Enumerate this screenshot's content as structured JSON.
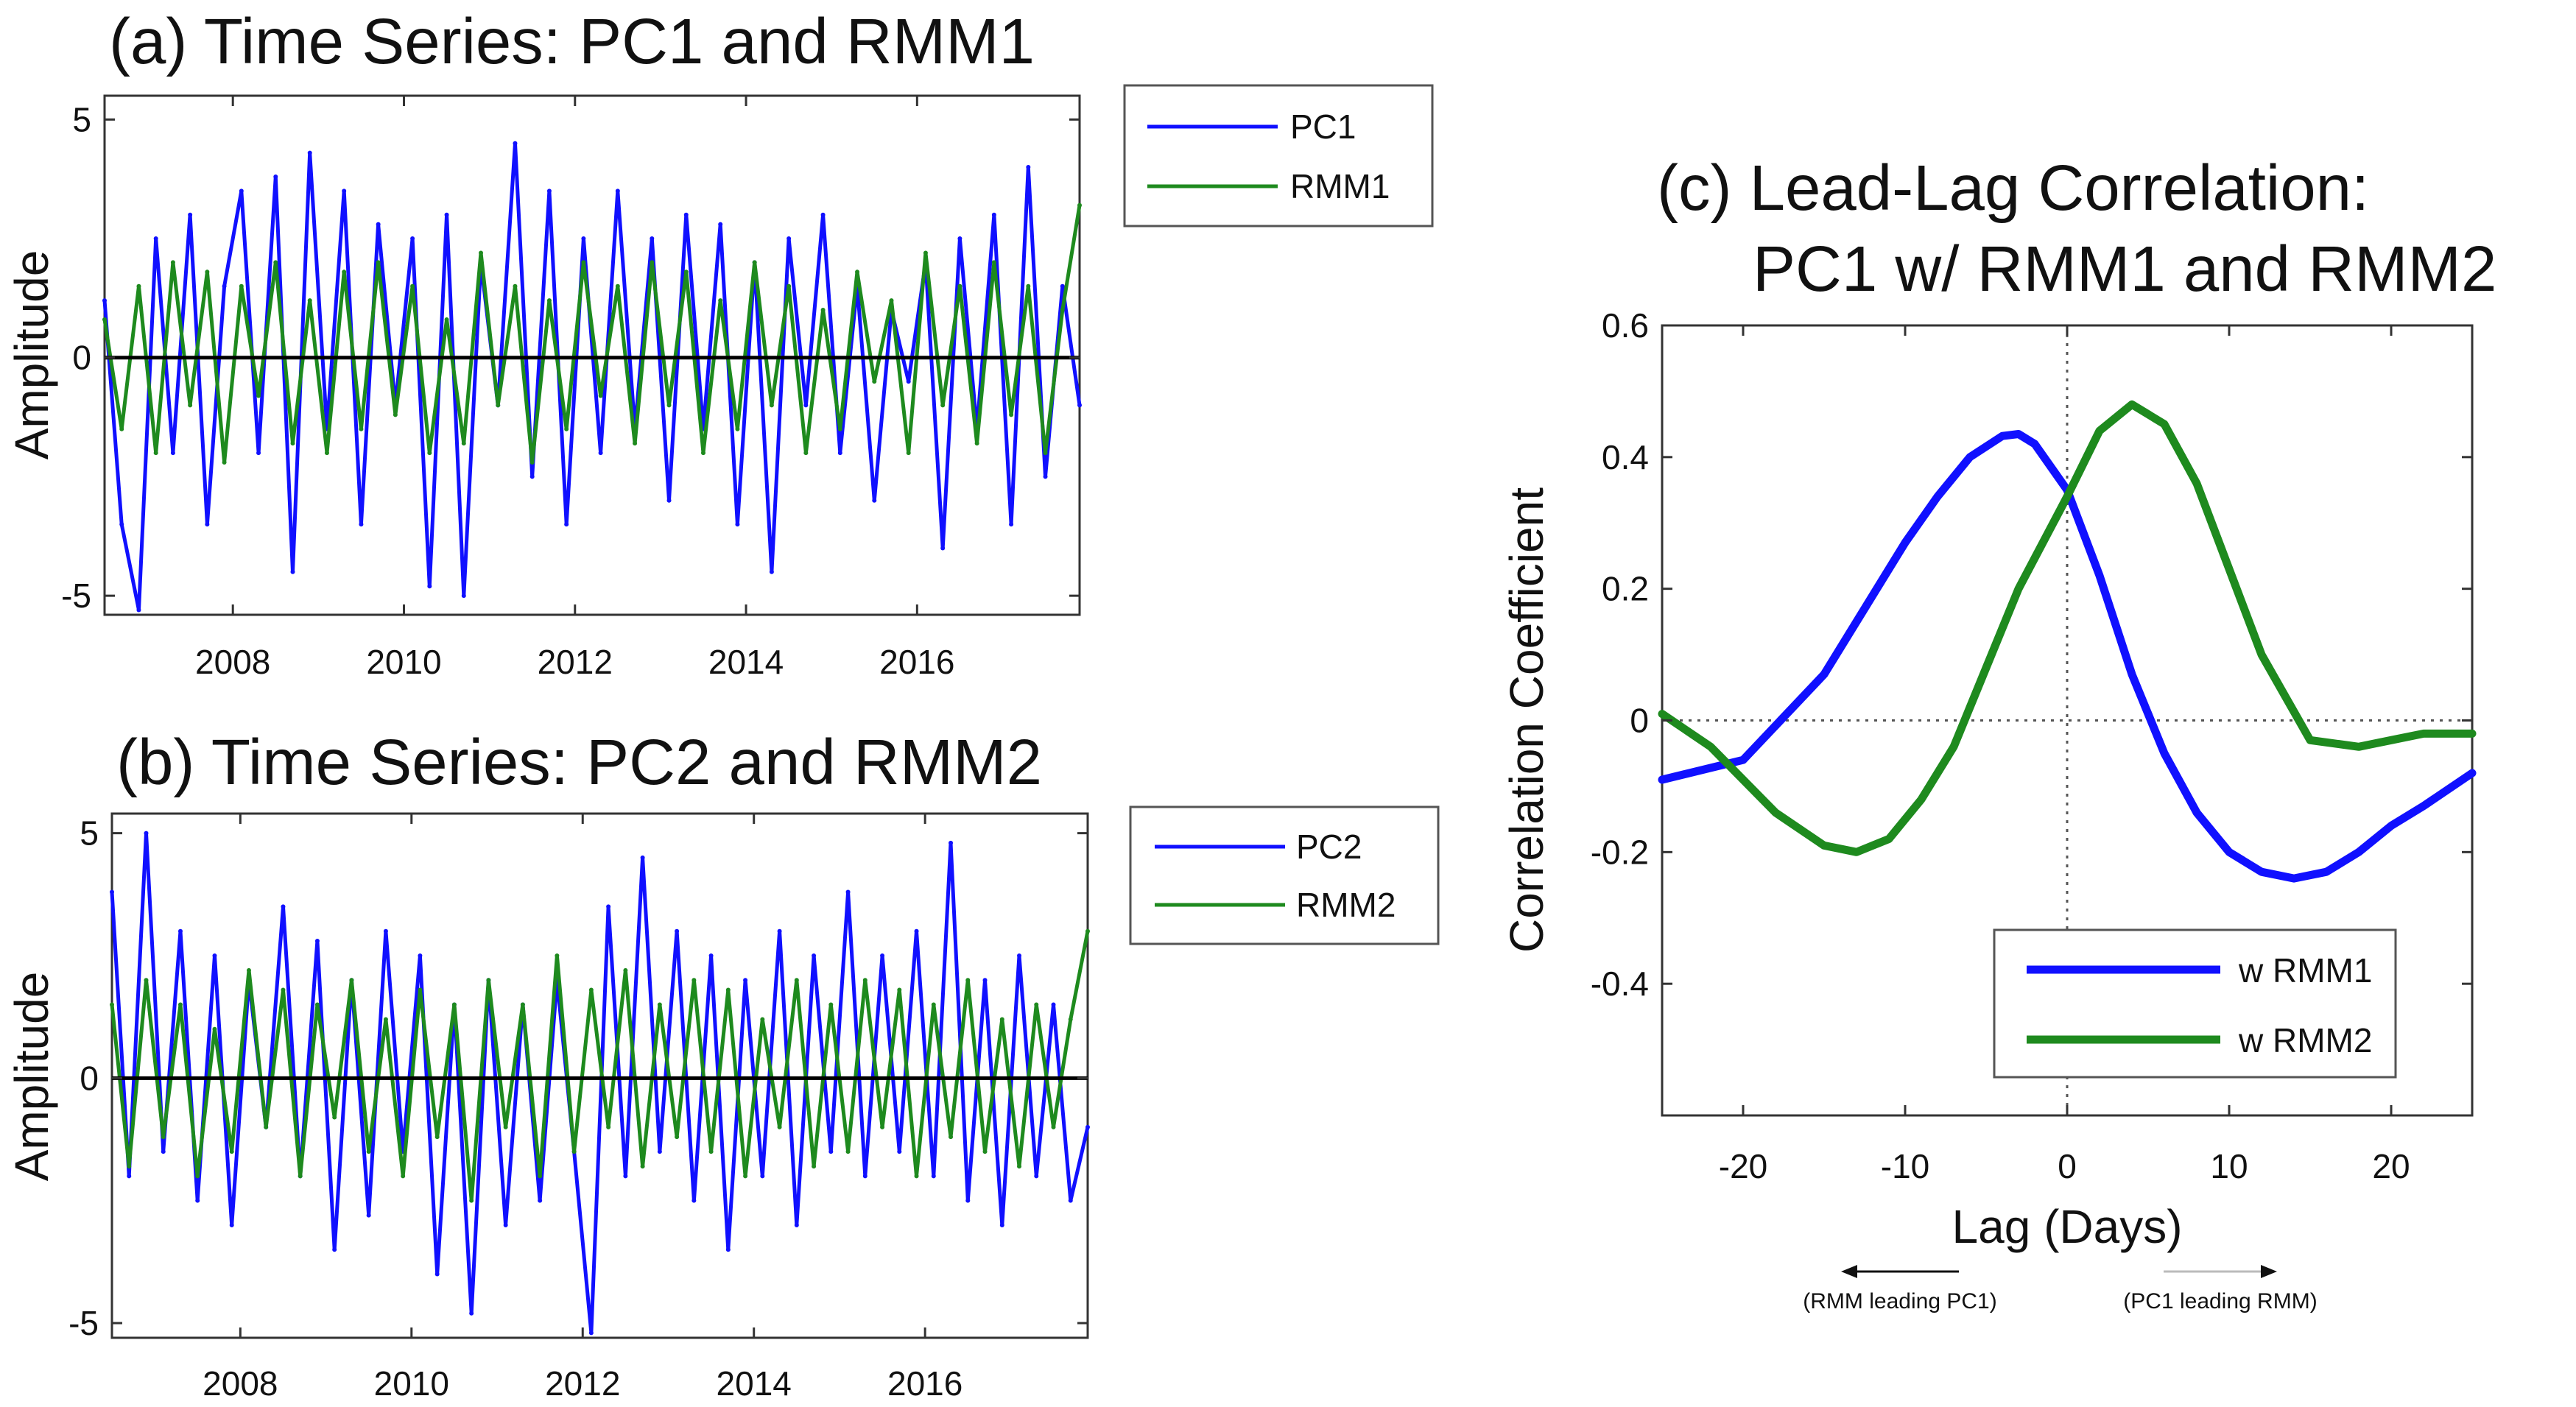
{
  "colors": {
    "pc": "#1010ff",
    "rmm": "#1e8a1e",
    "zero": "#000000"
  },
  "chart_data": [
    {
      "id": "a",
      "type": "line",
      "title": "(a) Time Series: PC1 and RMM1",
      "xlabel": "",
      "ylabel": "Amplitude",
      "xlim": [
        2006.5,
        2017.9
      ],
      "ylim": [
        -5.4,
        5.5
      ],
      "xticks": [
        2008,
        2010,
        2012,
        2014,
        2016
      ],
      "xtick_labels": [
        "2008",
        "2010",
        "2012",
        "2014",
        "2016"
      ],
      "yticks": [
        5,
        0,
        -5
      ],
      "ytick_labels": [
        "5",
        "0",
        "-5"
      ],
      "zero_line": true,
      "legend": {
        "position": "top-right"
      },
      "series": [
        {
          "name": "PC1",
          "color": "#1010ff",
          "x": [
            2006.5,
            2006.7,
            2006.9,
            2007.1,
            2007.3,
            2007.5,
            2007.7,
            2007.9,
            2008.1,
            2008.3,
            2008.5,
            2008.7,
            2008.9,
            2009.1,
            2009.3,
            2009.5,
            2009.7,
            2009.9,
            2010.1,
            2010.3,
            2010.5,
            2010.7,
            2010.9,
            2011.1,
            2011.3,
            2011.5,
            2011.7,
            2011.9,
            2012.1,
            2012.3,
            2012.5,
            2012.7,
            2012.9,
            2013.1,
            2013.3,
            2013.5,
            2013.7,
            2013.9,
            2014.1,
            2014.3,
            2014.5,
            2014.7,
            2014.9,
            2015.1,
            2015.3,
            2015.5,
            2015.7,
            2015.9,
            2016.1,
            2016.3,
            2016.5,
            2016.7,
            2016.9,
            2017.1,
            2017.3,
            2017.5,
            2017.7,
            2017.9
          ],
          "values": [
            1.2,
            -3.5,
            -5.3,
            2.5,
            -2.0,
            3.0,
            -3.5,
            1.5,
            3.5,
            -2.0,
            3.8,
            -4.5,
            4.3,
            -1.5,
            3.5,
            -3.5,
            2.8,
            -1.0,
            2.5,
            -4.8,
            3.0,
            -5.0,
            2.0,
            -1.0,
            4.5,
            -2.5,
            3.5,
            -3.5,
            2.5,
            -2.0,
            3.5,
            -1.5,
            2.5,
            -3.0,
            3.0,
            -1.5,
            2.8,
            -3.5,
            2.0,
            -4.5,
            2.5,
            -1.0,
            3.0,
            -2.0,
            1.5,
            -3.0,
            1.0,
            -0.5,
            2.0,
            -4.0,
            2.5,
            -1.5,
            3.0,
            -3.5,
            4.0,
            -2.5,
            1.5,
            -1.0
          ]
        },
        {
          "name": "RMM1",
          "color": "#1e8a1e",
          "x": [
            2006.5,
            2006.7,
            2006.9,
            2007.1,
            2007.3,
            2007.5,
            2007.7,
            2007.9,
            2008.1,
            2008.3,
            2008.5,
            2008.7,
            2008.9,
            2009.1,
            2009.3,
            2009.5,
            2009.7,
            2009.9,
            2010.1,
            2010.3,
            2010.5,
            2010.7,
            2010.9,
            2011.1,
            2011.3,
            2011.5,
            2011.7,
            2011.9,
            2012.1,
            2012.3,
            2012.5,
            2012.7,
            2012.9,
            2013.1,
            2013.3,
            2013.5,
            2013.7,
            2013.9,
            2014.1,
            2014.3,
            2014.5,
            2014.7,
            2014.9,
            2015.1,
            2015.3,
            2015.5,
            2015.7,
            2015.9,
            2016.1,
            2016.3,
            2016.5,
            2016.7,
            2016.9,
            2017.1,
            2017.3,
            2017.5,
            2017.7,
            2017.9
          ],
          "values": [
            0.8,
            -1.5,
            1.5,
            -2.0,
            2.0,
            -1.0,
            1.8,
            -2.2,
            1.5,
            -0.8,
            2.0,
            -1.8,
            1.2,
            -2.0,
            1.8,
            -1.5,
            2.0,
            -1.2,
            1.5,
            -2.0,
            0.8,
            -1.8,
            2.2,
            -1.0,
            1.5,
            -2.2,
            1.2,
            -1.5,
            2.0,
            -0.8,
            1.5,
            -1.8,
            2.0,
            -1.0,
            1.8,
            -2.0,
            1.2,
            -1.5,
            2.0,
            -1.0,
            1.5,
            -2.0,
            1.0,
            -1.5,
            1.8,
            -0.5,
            1.2,
            -2.0,
            2.2,
            -1.0,
            1.5,
            -1.8,
            2.0,
            -1.2,
            1.5,
            -2.0,
            1.0,
            3.2
          ]
        }
      ]
    },
    {
      "id": "b",
      "type": "line",
      "title": "(b) Time Series: PC2 and RMM2",
      "xlabel": "",
      "ylabel": "Amplitude",
      "xlim": [
        2006.5,
        2017.9
      ],
      "ylim": [
        -5.3,
        5.4
      ],
      "xticks": [
        2008,
        2010,
        2012,
        2014,
        2016
      ],
      "xtick_labels": [
        "2008",
        "2010",
        "2012",
        "2014",
        "2016"
      ],
      "yticks": [
        5,
        0,
        -5
      ],
      "ytick_labels": [
        "5",
        "0",
        "-5"
      ],
      "zero_line": true,
      "legend": {
        "position": "top-right"
      },
      "series": [
        {
          "name": "PC2",
          "color": "#1010ff",
          "x": [
            2006.5,
            2006.7,
            2006.9,
            2007.1,
            2007.3,
            2007.5,
            2007.7,
            2007.9,
            2008.1,
            2008.3,
            2008.5,
            2008.7,
            2008.9,
            2009.1,
            2009.3,
            2009.5,
            2009.7,
            2009.9,
            2010.1,
            2010.3,
            2010.5,
            2010.7,
            2010.9,
            2011.1,
            2011.3,
            2011.5,
            2011.7,
            2011.9,
            2012.1,
            2012.3,
            2012.5,
            2012.7,
            2012.9,
            2013.1,
            2013.3,
            2013.5,
            2013.7,
            2013.9,
            2014.1,
            2014.3,
            2014.5,
            2014.7,
            2014.9,
            2015.1,
            2015.3,
            2015.5,
            2015.7,
            2015.9,
            2016.1,
            2016.3,
            2016.5,
            2016.7,
            2016.9,
            2017.1,
            2017.3,
            2017.5,
            2017.7,
            2017.9
          ],
          "values": [
            3.8,
            -2.0,
            5.0,
            -1.5,
            3.0,
            -2.5,
            2.5,
            -3.0,
            2.0,
            -1.0,
            3.5,
            -2.0,
            2.8,
            -3.5,
            2.0,
            -2.8,
            3.0,
            -1.5,
            2.5,
            -4.0,
            1.5,
            -4.8,
            2.0,
            -3.0,
            1.5,
            -2.5,
            2.0,
            -1.5,
            -5.2,
            3.5,
            -2.0,
            4.5,
            -1.5,
            3.0,
            -2.5,
            2.5,
            -3.5,
            2.0,
            -2.0,
            3.0,
            -3.0,
            2.5,
            -1.5,
            3.8,
            -2.0,
            2.5,
            -1.5,
            3.0,
            -2.0,
            4.8,
            -2.5,
            2.0,
            -3.0,
            2.5,
            -2.0,
            1.5,
            -2.5,
            -1.0
          ]
        },
        {
          "name": "RMM2",
          "color": "#1e8a1e",
          "x": [
            2006.5,
            2006.7,
            2006.9,
            2007.1,
            2007.3,
            2007.5,
            2007.7,
            2007.9,
            2008.1,
            2008.3,
            2008.5,
            2008.7,
            2008.9,
            2009.1,
            2009.3,
            2009.5,
            2009.7,
            2009.9,
            2010.1,
            2010.3,
            2010.5,
            2010.7,
            2010.9,
            2011.1,
            2011.3,
            2011.5,
            2011.7,
            2011.9,
            2012.1,
            2012.3,
            2012.5,
            2012.7,
            2012.9,
            2013.1,
            2013.3,
            2013.5,
            2013.7,
            2013.9,
            2014.1,
            2014.3,
            2014.5,
            2014.7,
            2014.9,
            2015.1,
            2015.3,
            2015.5,
            2015.7,
            2015.9,
            2016.1,
            2016.3,
            2016.5,
            2016.7,
            2016.9,
            2017.1,
            2017.3,
            2017.5,
            2017.7,
            2017.9
          ],
          "values": [
            1.5,
            -1.8,
            2.0,
            -1.2,
            1.5,
            -2.0,
            1.0,
            -1.5,
            2.2,
            -1.0,
            1.8,
            -2.0,
            1.5,
            -0.8,
            2.0,
            -1.5,
            1.2,
            -2.0,
            1.8,
            -1.2,
            1.5,
            -2.5,
            2.0,
            -1.0,
            1.5,
            -2.0,
            2.5,
            -1.5,
            1.8,
            -1.0,
            2.2,
            -1.8,
            1.5,
            -1.2,
            2.0,
            -1.5,
            1.8,
            -2.0,
            1.2,
            -1.0,
            2.0,
            -1.8,
            1.5,
            -1.5,
            2.0,
            -1.0,
            1.8,
            -2.0,
            1.5,
            -1.2,
            2.0,
            -1.5,
            1.2,
            -1.8,
            1.5,
            -1.0,
            1.2,
            3.0
          ]
        }
      ]
    },
    {
      "id": "c",
      "type": "line",
      "title": "(c) Lead-Lag Correlation:",
      "title_line2": "PC1 w/ RMM1 and RMM2",
      "xlabel": "Lag (Days)",
      "ylabel": "Correlation Coefficient",
      "xlim": [
        -25,
        25
      ],
      "ylim": [
        -0.6,
        0.6
      ],
      "xticks": [
        -20,
        -10,
        0,
        10,
        20
      ],
      "xtick_labels": [
        "-20",
        "-10",
        "0",
        "10",
        "20"
      ],
      "yticks": [
        0.6,
        0.4,
        0.2,
        0,
        -0.2,
        -0.4
      ],
      "ytick_labels": [
        "0.6",
        "0.4",
        "0.2",
        "0",
        "-0.2",
        "-0.4"
      ],
      "grid": "dotted lines at x = 0 and y = 0",
      "legend": {
        "position": "bottom-right"
      },
      "annotations": {
        "left_arrow": "(RMM leading PC1)",
        "right_arrow": "(PC1 leading RMM)"
      },
      "series": [
        {
          "name": "w RMM1",
          "color": "#1010ff",
          "x": [
            -25,
            -20,
            -15,
            -12,
            -10,
            -8,
            -6,
            -4,
            -3,
            -2,
            0,
            2,
            4,
            6,
            8,
            10,
            12,
            14,
            16,
            18,
            20,
            22,
            25
          ],
          "values": [
            -0.09,
            -0.06,
            0.07,
            0.19,
            0.27,
            0.34,
            0.4,
            0.432,
            0.435,
            0.42,
            0.35,
            0.22,
            0.07,
            -0.05,
            -0.14,
            -0.2,
            -0.23,
            -0.24,
            -0.23,
            -0.2,
            -0.16,
            -0.13,
            -0.08
          ]
        },
        {
          "name": "w RMM2",
          "color": "#1e8a1e",
          "x": [
            -25,
            -22,
            -20,
            -18,
            -15,
            -13,
            -11,
            -9,
            -7,
            -5,
            -3,
            0,
            2,
            4,
            6,
            8,
            10,
            12,
            15,
            18,
            20,
            22,
            25
          ],
          "values": [
            0.01,
            -0.04,
            -0.09,
            -0.14,
            -0.19,
            -0.2,
            -0.18,
            -0.12,
            -0.04,
            0.08,
            0.2,
            0.34,
            0.44,
            0.48,
            0.45,
            0.36,
            0.23,
            0.1,
            -0.03,
            -0.04,
            -0.03,
            -0.02,
            -0.02
          ]
        }
      ]
    }
  ]
}
